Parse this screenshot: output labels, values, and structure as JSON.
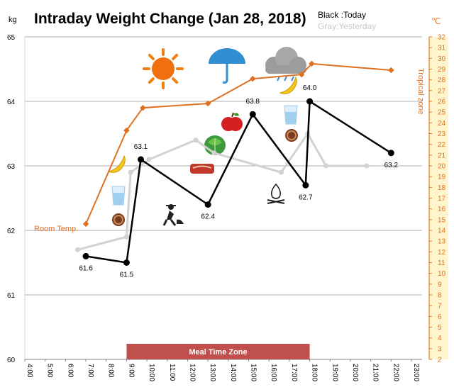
{
  "colors": {
    "today": "#000000",
    "yesterday": "#d2d2d2",
    "temperature": "#e07020",
    "meal_zone": "#c0504d",
    "right_axis_bg": "#fff5cc",
    "grid": "#b0b0b0"
  },
  "icons": [
    "sun-icon",
    "umbrella-icon",
    "cloud-icon",
    "banana-icon",
    "apple-icon",
    "lettuce-icon",
    "water-glass-icon",
    "meat-icon",
    "cookie-icon",
    "gardener-icon",
    "campfire-icon"
  ],
  "chart_data": {
    "type": "line",
    "title": "Intraday Weight Change (Jan 28, 2018)",
    "legend": [
      "Black :Today",
      "Gray:Yesterday"
    ],
    "legend_placement": "top-right",
    "y_unit": "kg",
    "y2_unit": "℃",
    "ylim": [
      60,
      65
    ],
    "y_ticks": [
      "60",
      "61",
      "62",
      "63",
      "64",
      "65"
    ],
    "y2lim": [
      2,
      32
    ],
    "y2_ticks": [
      "2",
      "3",
      "4",
      "5",
      "6",
      "7",
      "8",
      "9",
      "10",
      "11",
      "12",
      "13",
      "14",
      "15",
      "16",
      "17",
      "18",
      "19",
      "20",
      "21",
      "22",
      "23",
      "24",
      "25",
      "26",
      "27",
      "28",
      "29",
      "30",
      "31",
      "32"
    ],
    "xlim": [
      4,
      23
    ],
    "x_ticks": [
      "4:00",
      "5:00",
      "6:00",
      "7:00",
      "8:00",
      "9:00",
      "10:00",
      "11:00",
      "12:00",
      "13:00",
      "14:00",
      "15:00",
      "16:00",
      "17:00",
      "18:00",
      "19:00",
      "20:00",
      "21:00",
      "22:00",
      "23:00"
    ],
    "grid": true,
    "series": [
      {
        "name": "Today",
        "axis": "left",
        "x": [
          7.0,
          9.0,
          9.7,
          13.0,
          15.2,
          17.8,
          18.0,
          22.0
        ],
        "y": [
          61.6,
          61.5,
          63.1,
          62.4,
          63.8,
          62.7,
          64.0,
          63.2
        ],
        "labels": [
          "61.6",
          "61.5",
          "63.1",
          "62.4",
          "63.8",
          "62.7",
          "64.0",
          "63.2"
        ]
      },
      {
        "name": "Yesterday",
        "axis": "left",
        "x": [
          6.6,
          9.0,
          9.2,
          10.1,
          12.4,
          13.3,
          16.6,
          17.9,
          18.8,
          20.8
        ],
        "y": [
          61.7,
          61.9,
          62.9,
          63.1,
          63.4,
          63.2,
          62.9,
          63.5,
          63.0,
          63.0
        ]
      },
      {
        "name": "Temperature",
        "axis": "right",
        "x": [
          7.0,
          9.0,
          9.8,
          13.0,
          15.2,
          17.6,
          18.1,
          22.0
        ],
        "y": [
          14.6,
          23.3,
          25.4,
          25.8,
          28.1,
          28.5,
          29.5,
          28.9
        ]
      }
    ],
    "annotations": [
      {
        "text": "Room Temp.",
        "color": "#e07020"
      },
      {
        "text": "Tropical zone",
        "color": "#e07020"
      }
    ],
    "meal_zone": {
      "label": "Meal Time Zone",
      "x_start": 9.0,
      "x_end": 18.0
    }
  }
}
